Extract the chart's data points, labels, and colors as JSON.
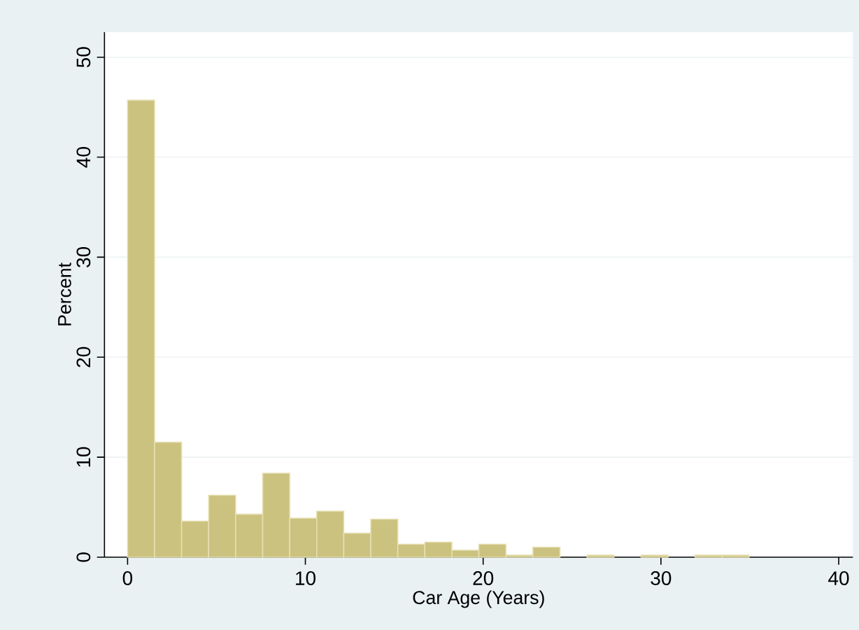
{
  "chart_data": {
    "type": "histogram",
    "xlabel": "Car Age (Years)",
    "ylabel": "Percent",
    "color": "#cbc27f",
    "bins": [
      0,
      1.52,
      3.04,
      4.56,
      6.08,
      7.6,
      9.12,
      10.64,
      12.16,
      13.68,
      15.2,
      16.72,
      18.24,
      19.76,
      21.28,
      22.8,
      24.32,
      25.84,
      27.36,
      28.88,
      30.4,
      31.92,
      33.44,
      34.96
    ],
    "values": [
      45.7,
      11.5,
      3.6,
      6.2,
      4.3,
      8.4,
      3.9,
      4.6,
      2.4,
      3.8,
      1.3,
      1.5,
      0.7,
      1.3,
      0.2,
      1.0,
      0,
      0.2,
      0,
      0.2,
      0,
      0.2,
      0.2
    ],
    "xlim": [
      -1.3,
      40.8
    ],
    "ylim": [
      0,
      52.5
    ],
    "xticks": [
      0,
      10,
      20,
      30,
      40
    ],
    "yticks": [
      0,
      10,
      20,
      30,
      40,
      50
    ],
    "grid": "y"
  }
}
